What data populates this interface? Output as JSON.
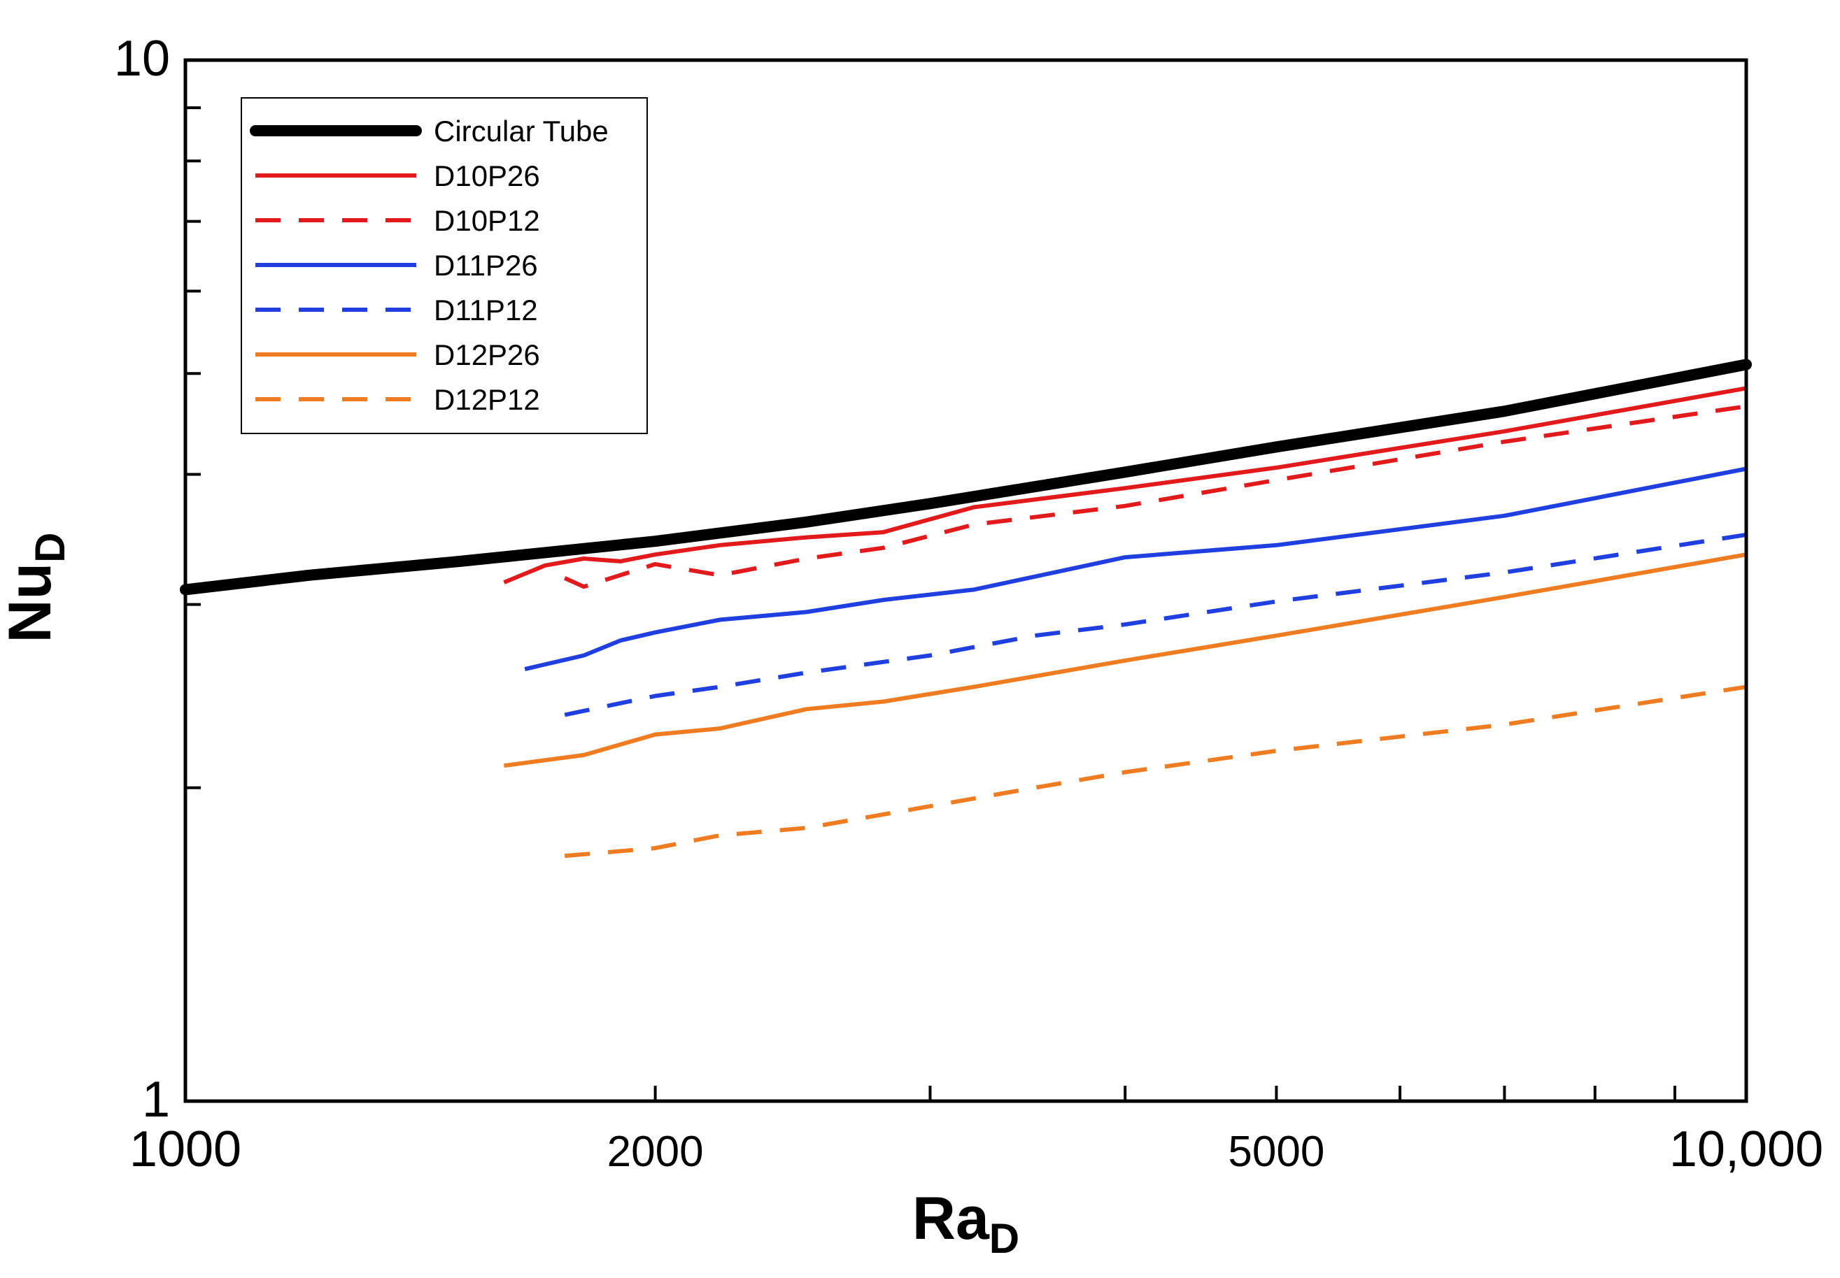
{
  "chart_data": {
    "type": "line",
    "xscale": "log",
    "yscale": "log",
    "xlim": [
      1000,
      10000
    ],
    "ylim": [
      1,
      10
    ],
    "xlabel_main": "Ra",
    "xlabel_sub": "D",
    "ylabel_main": "Nu",
    "ylabel_sub": "D",
    "x_tick_labels": [
      {
        "value": 1000,
        "label": "1000"
      },
      {
        "value": 2000,
        "label": "2000"
      },
      {
        "value": 5000,
        "label": "5000"
      },
      {
        "value": 10000,
        "label": "10,000"
      }
    ],
    "x_minor_ticks": [
      2000,
      3000,
      4000,
      5000,
      6000,
      7000,
      8000,
      9000
    ],
    "y_tick_labels": [
      {
        "value": 1,
        "label": "1"
      },
      {
        "value": 10,
        "label": "10"
      }
    ],
    "y_minor_ticks": [
      2,
      3,
      4,
      5,
      6,
      7,
      8,
      9
    ],
    "legend_position": "top-left",
    "series": [
      {
        "name": "Circular Tube",
        "color": "#000000",
        "style": "solid",
        "weight": "thick",
        "x": [
          1000,
          1200,
          1500,
          2000,
          2500,
          3000,
          4000,
          5000,
          7000,
          10000
        ],
        "y": [
          3.1,
          3.2,
          3.3,
          3.45,
          3.6,
          3.75,
          4.02,
          4.25,
          4.6,
          5.1
        ]
      },
      {
        "name": "D10P26",
        "color": "#e31a1c",
        "style": "solid",
        "weight": "normal",
        "x": [
          1600,
          1700,
          1800,
          1900,
          2000,
          2200,
          2500,
          2800,
          3200,
          4000,
          5000,
          7000,
          10000
        ],
        "y": [
          3.15,
          3.27,
          3.32,
          3.3,
          3.35,
          3.42,
          3.48,
          3.52,
          3.72,
          3.88,
          4.06,
          4.4,
          4.84
        ]
      },
      {
        "name": "D10P12",
        "color": "#e31a1c",
        "style": "dashed",
        "weight": "normal",
        "x": [
          1750,
          1800,
          2000,
          2200,
          2500,
          2800,
          3200,
          4000,
          5000,
          7000,
          10000
        ],
        "y": [
          3.18,
          3.12,
          3.28,
          3.2,
          3.32,
          3.4,
          3.58,
          3.73,
          3.95,
          4.3,
          4.65
        ]
      },
      {
        "name": "D11P26",
        "color": "#1f3fe0",
        "style": "solid",
        "weight": "normal",
        "x": [
          1650,
          1800,
          1900,
          2000,
          2200,
          2500,
          2800,
          3200,
          4000,
          5000,
          7000,
          10000
        ],
        "y": [
          2.6,
          2.68,
          2.77,
          2.82,
          2.9,
          2.95,
          3.03,
          3.1,
          3.33,
          3.42,
          3.65,
          4.05
        ]
      },
      {
        "name": "D11P12",
        "color": "#1f3fe0",
        "style": "dashed",
        "weight": "normal",
        "x": [
          1750,
          2000,
          2200,
          2500,
          3000,
          3500,
          4000,
          5000,
          7000,
          10000
        ],
        "y": [
          2.35,
          2.45,
          2.5,
          2.58,
          2.68,
          2.8,
          2.87,
          3.02,
          3.22,
          3.5
        ]
      },
      {
        "name": "D12P26",
        "color": "#f07c22",
        "style": "solid",
        "weight": "normal",
        "x": [
          1600,
          1800,
          2000,
          2200,
          2500,
          2800,
          3200,
          4000,
          5000,
          7000,
          10000
        ],
        "y": [
          2.1,
          2.15,
          2.25,
          2.28,
          2.38,
          2.42,
          2.5,
          2.65,
          2.8,
          3.05,
          3.35
        ]
      },
      {
        "name": "D12P12",
        "color": "#f07c22",
        "style": "dashed",
        "weight": "normal",
        "x": [
          1750,
          2000,
          2200,
          2500,
          3000,
          3500,
          4000,
          5000,
          7000,
          10000
        ],
        "y": [
          1.72,
          1.75,
          1.8,
          1.83,
          1.92,
          2.0,
          2.07,
          2.17,
          2.3,
          2.5
        ]
      }
    ]
  }
}
